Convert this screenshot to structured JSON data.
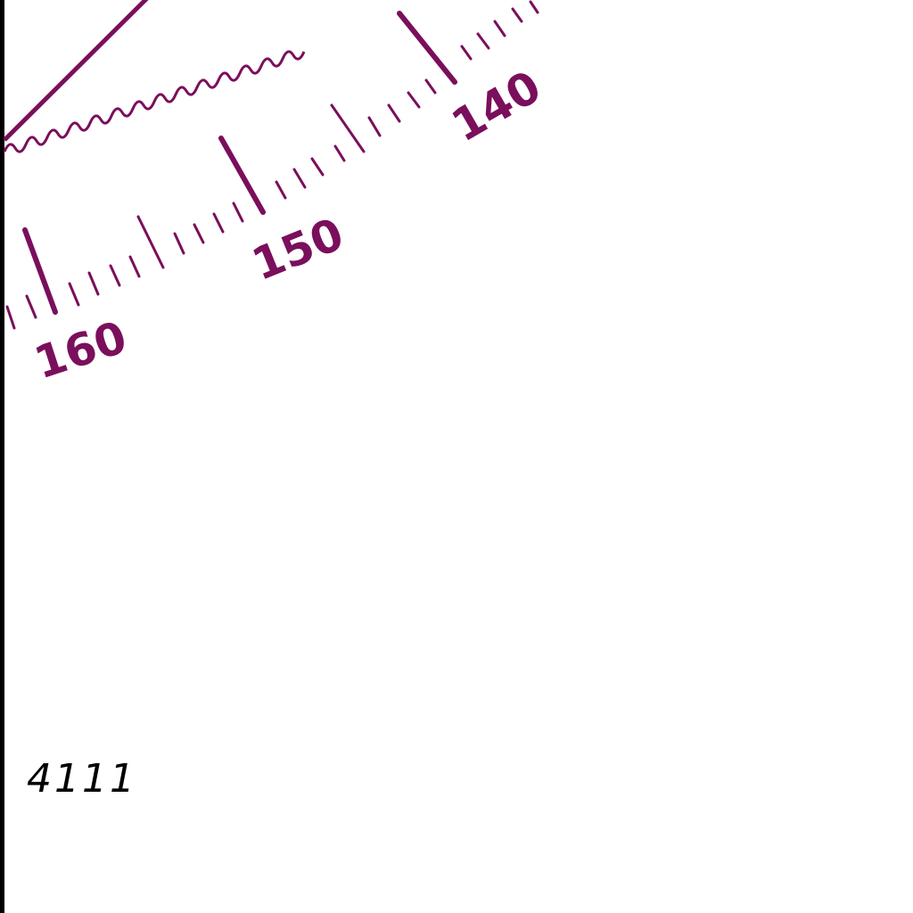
{
  "colors": {
    "background": "#ffffff",
    "compass": "#7a0f5c",
    "frame": "#000000",
    "sounding": "#000000"
  },
  "compass_rose": {
    "labels": [
      "140",
      "150",
      "160"
    ],
    "tick_interval_deg": 2,
    "major_interval_deg": 10,
    "feature": "magenta-compass-rose-fragment"
  },
  "soundings": [
    {
      "text": "4111"
    }
  ]
}
